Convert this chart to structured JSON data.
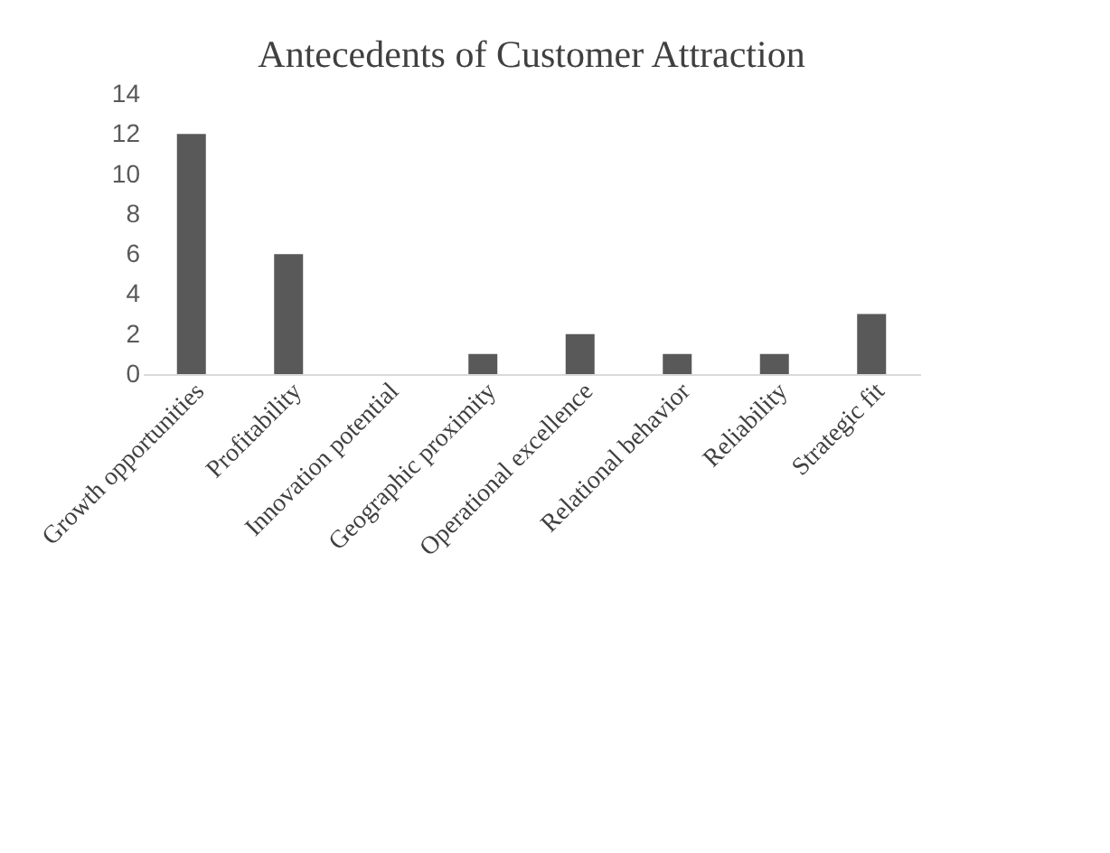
{
  "chart_data": {
    "type": "bar",
    "title": "Antecedents of Customer Attraction",
    "categories": [
      "Growth opportunities",
      "Profitability",
      "Innovation potential",
      "Geographic proximity",
      "Operational excellence",
      "Relational behavior",
      "Reliability",
      "Strategic fit"
    ],
    "values": [
      12,
      6,
      0,
      1,
      2,
      1,
      1,
      3
    ],
    "color": "#595959",
    "ylim": [
      0,
      14
    ],
    "yticks": [
      0,
      2,
      4,
      6,
      8,
      10,
      12,
      14
    ],
    "grid": false
  }
}
